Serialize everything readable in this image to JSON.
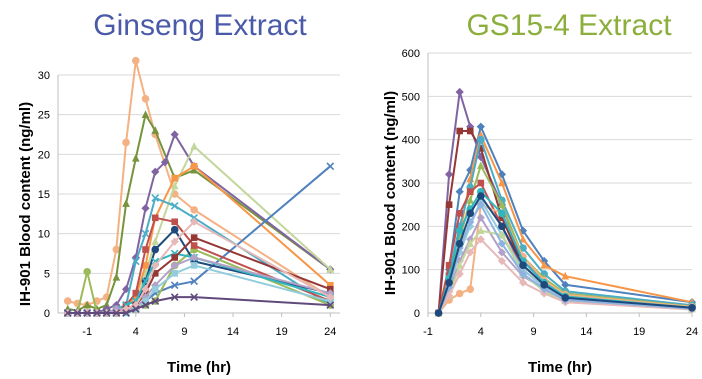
{
  "chart_data": [
    {
      "type": "line",
      "title": "Ginseng Extract",
      "title_color": "#4a5aa8",
      "ylabel": "IH-901 Blood content (ng/ml)",
      "xlabel": "Time (hr)",
      "xlim": [
        -4,
        25
      ],
      "ylim": [
        0,
        30
      ],
      "xticks": [
        "-1",
        "4",
        "9",
        "14",
        "19",
        "24"
      ],
      "yticks": [
        "0",
        "5",
        "10",
        "15",
        "20",
        "25",
        "30"
      ],
      "grid": true,
      "legend": "none",
      "series": [
        {
          "color": "#f4b183",
          "marker": "circle",
          "x": [
            -3,
            -2,
            -1,
            0,
            1,
            2,
            3,
            4,
            5,
            6,
            8,
            10,
            24
          ],
          "y": [
            1.5,
            1.2,
            1.0,
            1.5,
            2.0,
            8,
            21.5,
            31.8,
            27,
            22.5,
            15,
            13,
            2.0
          ]
        },
        {
          "color": "#77933c",
          "marker": "triangle",
          "x": [
            -3,
            -2,
            -1,
            0,
            1,
            2,
            3,
            4,
            5,
            6,
            8,
            10,
            24
          ],
          "y": [
            0.5,
            0.3,
            1.0,
            0.5,
            1.0,
            4.5,
            13.8,
            19.5,
            25,
            23,
            17,
            18,
            5.5
          ]
        },
        {
          "color": "#8064a2",
          "marker": "diamond",
          "x": [
            -3,
            -2,
            -1,
            0,
            1,
            2,
            3,
            4,
            5,
            6,
            7,
            8,
            10,
            24
          ],
          "y": [
            0,
            0,
            0,
            0,
            0.5,
            1.0,
            3.0,
            7.0,
            13.2,
            17.8,
            19,
            22.5,
            18.5,
            5.5
          ]
        },
        {
          "color": "#c3d69b",
          "marker": "triangle",
          "x": [
            -3,
            -2,
            -1,
            0,
            1,
            2,
            3,
            4,
            5,
            6,
            8,
            10,
            24
          ],
          "y": [
            0,
            0,
            0,
            0,
            0,
            0,
            0.5,
            1.0,
            5,
            9,
            16,
            21,
            5.5
          ]
        },
        {
          "color": "#f79646",
          "marker": "square",
          "x": [
            -3,
            -2,
            -1,
            0,
            1,
            2,
            3,
            4,
            5,
            6,
            8,
            10,
            24
          ],
          "y": [
            0,
            0,
            0,
            0,
            0,
            0.5,
            1.0,
            2.0,
            6,
            12,
            17,
            18.5,
            3.5
          ]
        },
        {
          "color": "#4f81bd",
          "marker": "x",
          "x": [
            -3,
            -2,
            -1,
            0,
            1,
            2,
            3,
            4,
            5,
            6,
            8,
            10,
            24
          ],
          "y": [
            0,
            0,
            0,
            0,
            0,
            0,
            0,
            0.5,
            1.5,
            2.5,
            3.5,
            4.0,
            18.5
          ]
        },
        {
          "color": "#4bacc6",
          "marker": "x",
          "x": [
            -3,
            -2,
            -1,
            0,
            1,
            2,
            3,
            4,
            5,
            6,
            8,
            10,
            24
          ],
          "y": [
            0,
            0,
            0,
            0,
            0,
            0.5,
            1.0,
            6.5,
            10,
            14.5,
            13.5,
            12,
            1.0
          ]
        },
        {
          "color": "#9bbb59",
          "marker": "circle",
          "x": [
            -3,
            -2,
            -1,
            0,
            1,
            2,
            3,
            4,
            5,
            6,
            8,
            10,
            24
          ],
          "y": [
            0,
            0,
            5.2,
            0,
            0,
            0,
            0.5,
            0.5,
            1.0,
            1.5,
            6,
            8,
            1.0
          ]
        },
        {
          "color": "#c0504d",
          "marker": "square",
          "x": [
            -3,
            -2,
            -1,
            0,
            1,
            2,
            3,
            4,
            5,
            6,
            8,
            10,
            24
          ],
          "y": [
            0,
            0,
            0,
            0,
            0,
            0,
            1.0,
            2.5,
            8,
            12,
            11.5,
            8.5,
            1.5
          ]
        },
        {
          "color": "#1f497d",
          "marker": "circle",
          "x": [
            -3,
            -2,
            -1,
            0,
            1,
            2,
            3,
            4,
            5,
            6,
            8,
            10,
            24
          ],
          "y": [
            0,
            0,
            0,
            0,
            0,
            0,
            0.5,
            1.0,
            4,
            8,
            10.5,
            6.5,
            2.5
          ]
        },
        {
          "color": "#31b6c0",
          "marker": "x",
          "x": [
            -3,
            -2,
            -1,
            0,
            1,
            2,
            3,
            4,
            5,
            6,
            8,
            10,
            24
          ],
          "y": [
            0,
            0,
            0,
            0,
            0,
            0,
            1.0,
            1.5,
            4,
            6.5,
            7.5,
            7.0,
            2.0
          ]
        },
        {
          "color": "#953735",
          "marker": "square",
          "x": [
            -3,
            -2,
            -1,
            0,
            1,
            2,
            3,
            4,
            5,
            6,
            8,
            10,
            24
          ],
          "y": [
            0,
            0,
            0,
            0,
            0,
            0,
            0.5,
            1.0,
            2.5,
            5,
            7,
            9.5,
            3.0
          ]
        },
        {
          "color": "#b3a2c7",
          "marker": "diamond",
          "x": [
            -3,
            -2,
            -1,
            0,
            1,
            2,
            3,
            4,
            5,
            6,
            8,
            10,
            24
          ],
          "y": [
            0,
            0,
            0,
            0,
            0,
            0.5,
            0.5,
            0.5,
            2,
            3.5,
            6,
            7,
            2.5
          ]
        },
        {
          "color": "#93cddd",
          "marker": "square",
          "x": [
            -3,
            -2,
            -1,
            0,
            1,
            2,
            3,
            4,
            5,
            6,
            8,
            10,
            24
          ],
          "y": [
            0,
            0,
            0,
            0,
            0,
            0,
            0,
            0.5,
            1.5,
            3,
            5,
            6,
            1.5
          ]
        },
        {
          "color": "#e6b9b8",
          "marker": "diamond",
          "x": [
            -3,
            -2,
            -1,
            0,
            1,
            2,
            3,
            4,
            5,
            6,
            8,
            10,
            24
          ],
          "y": [
            0,
            0,
            0,
            0,
            0,
            0,
            0.5,
            1.0,
            3,
            6,
            9,
            11.5,
            2.0
          ]
        },
        {
          "color": "#604a7b",
          "marker": "x",
          "x": [
            -3,
            -2,
            -1,
            0,
            1,
            2,
            3,
            4,
            5,
            6,
            8,
            10,
            24
          ],
          "y": [
            0,
            0,
            0,
            0,
            0,
            0,
            0,
            0.5,
            1.0,
            1.5,
            2.0,
            2.0,
            1.0
          ]
        }
      ]
    },
    {
      "type": "line",
      "title": "GS15-4 Extract",
      "title_color": "#8cae3c",
      "ylabel": "IH-901 Blood content (ng/ml)",
      "xlabel": "Time (hr)",
      "xlim": [
        -1,
        24
      ],
      "ylim": [
        0,
        600
      ],
      "xticks": [
        "-1",
        "4",
        "9",
        "14",
        "19",
        "24"
      ],
      "yticks": [
        "0",
        "100",
        "200",
        "300",
        "400",
        "500",
        "600"
      ],
      "grid": true,
      "legend": "none",
      "series": [
        {
          "color": "#8064a2",
          "marker": "diamond",
          "x": [
            0,
            1,
            2,
            3,
            4,
            6,
            8,
            10,
            12,
            24
          ],
          "y": [
            0,
            320,
            510,
            430,
            360,
            250,
            120,
            75,
            45,
            15
          ]
        },
        {
          "color": "#953735",
          "marker": "square",
          "x": [
            0,
            1,
            2,
            3,
            4,
            6,
            8,
            10,
            12,
            24
          ],
          "y": [
            0,
            250,
            420,
            420,
            380,
            220,
            110,
            65,
            40,
            15
          ]
        },
        {
          "color": "#4f81bd",
          "marker": "diamond",
          "x": [
            0,
            1,
            2,
            3,
            4,
            6,
            8,
            10,
            12,
            24
          ],
          "y": [
            0,
            100,
            280,
            330,
            430,
            320,
            190,
            120,
            65,
            25
          ]
        },
        {
          "color": "#f79646",
          "marker": "triangle",
          "x": [
            0,
            1,
            2,
            3,
            4,
            6,
            8,
            10,
            12,
            24
          ],
          "y": [
            0,
            60,
            180,
            310,
            410,
            300,
            170,
            110,
            85,
            25
          ]
        },
        {
          "color": "#4bacc6",
          "marker": "circle",
          "x": [
            0,
            1,
            2,
            3,
            4,
            6,
            8,
            10,
            12,
            24
          ],
          "y": [
            0,
            90,
            200,
            290,
            400,
            260,
            150,
            90,
            50,
            18
          ]
        },
        {
          "color": "#9bbb59",
          "marker": "triangle",
          "x": [
            0,
            1,
            2,
            3,
            4,
            6,
            8,
            10,
            12,
            24
          ],
          "y": [
            0,
            70,
            170,
            260,
            340,
            250,
            130,
            80,
            45,
            15
          ]
        },
        {
          "color": "#c0504d",
          "marker": "square",
          "x": [
            0,
            1,
            2,
            3,
            4,
            6,
            8,
            10,
            12,
            24
          ],
          "y": [
            0,
            110,
            230,
            280,
            300,
            200,
            100,
            60,
            35,
            12
          ]
        },
        {
          "color": "#f4b183",
          "marker": "circle",
          "x": [
            0,
            1,
            2,
            3,
            4,
            6,
            8,
            10,
            12,
            24
          ],
          "y": [
            0,
            30,
            45,
            55,
            250,
            230,
            130,
            75,
            42,
            14
          ]
        },
        {
          "color": "#93cddd",
          "marker": "diamond",
          "x": [
            0,
            1,
            2,
            3,
            4,
            6,
            8,
            10,
            12,
            24
          ],
          "y": [
            0,
            60,
            140,
            200,
            260,
            180,
            100,
            60,
            32,
            10
          ]
        },
        {
          "color": "#b3a2c7",
          "marker": "diamond",
          "x": [
            0,
            1,
            2,
            3,
            4,
            6,
            8,
            10,
            12,
            24
          ],
          "y": [
            0,
            50,
            120,
            170,
            220,
            140,
            85,
            55,
            30,
            10
          ]
        },
        {
          "color": "#c3d69b",
          "marker": "triangle",
          "x": [
            0,
            1,
            2,
            3,
            4,
            6,
            8,
            10,
            12,
            24
          ],
          "y": [
            0,
            40,
            110,
            160,
            190,
            180,
            90,
            50,
            28,
            9
          ]
        },
        {
          "color": "#31b6c0",
          "marker": "circle",
          "x": [
            0,
            1,
            2,
            3,
            4,
            6,
            8,
            10,
            12,
            24
          ],
          "y": [
            0,
            80,
            190,
            240,
            280,
            230,
            120,
            70,
            38,
            12
          ]
        },
        {
          "color": "#e6b9b8",
          "marker": "diamond",
          "x": [
            0,
            1,
            2,
            3,
            4,
            6,
            8,
            10,
            12,
            24
          ],
          "y": [
            0,
            40,
            90,
            140,
            170,
            120,
            70,
            45,
            25,
            8
          ]
        },
        {
          "color": "#8db3e2",
          "marker": "diamond",
          "x": [
            0,
            1,
            2,
            3,
            4,
            6,
            8,
            10,
            12,
            24
          ],
          "y": [
            0,
            60,
            150,
            210,
            250,
            160,
            90,
            55,
            30,
            10
          ]
        },
        {
          "color": "#1f497d",
          "marker": "circle",
          "x": [
            0,
            1,
            2,
            3,
            4,
            6,
            8,
            10,
            12,
            24
          ],
          "y": [
            0,
            70,
            160,
            230,
            270,
            200,
            110,
            65,
            35,
            12
          ]
        }
      ]
    }
  ]
}
